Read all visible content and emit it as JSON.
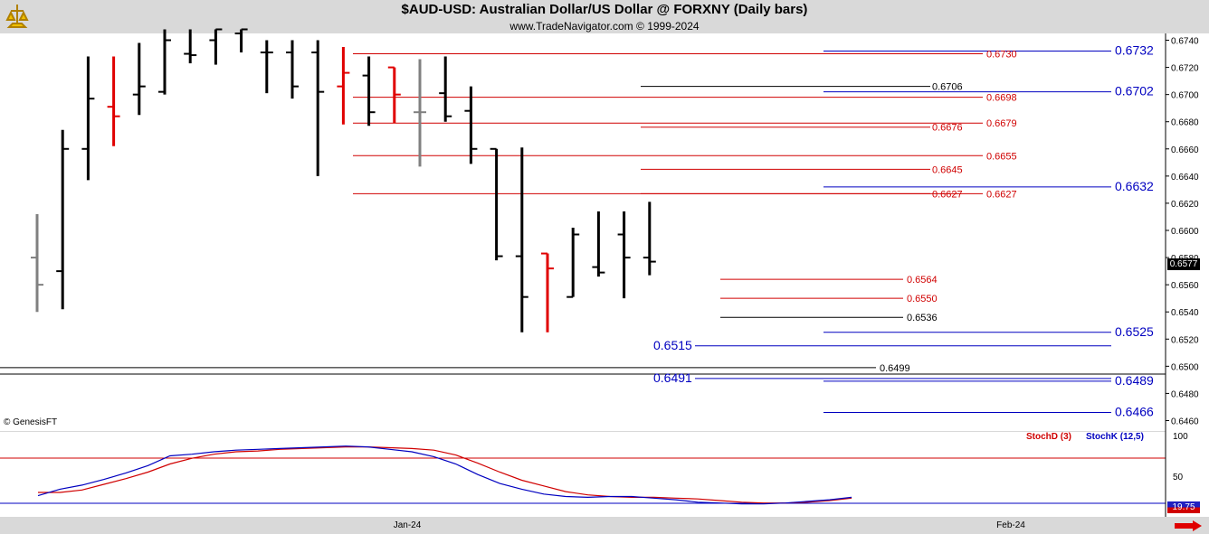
{
  "header": {
    "title": "$AUD-USD:  Australian Dollar/US Dollar @ FORXNY  (Daily bars)",
    "subtitle": "www.TradeNavigator.com © 1999-2024"
  },
  "watermark": "© GenesisFT",
  "last_price_label": "0.6577",
  "stoch_value_label": "19.75",
  "colors": {
    "up_bar": "#000000",
    "down_bar": "#e00000",
    "neutral_bar": "#808080",
    "level_red": "#d00000",
    "level_blue": "#0000c0",
    "level_black": "#000000",
    "stoch_d": "#d00000",
    "stoch_k": "#0000c0"
  },
  "chart_data": [
    {
      "type": "bar",
      "subtype": "ohlc",
      "ylim": [
        0.6457,
        0.6743
      ],
      "y_ticks": [
        "0.6740",
        "0.6720",
        "0.6700",
        "0.6680",
        "0.6660",
        "0.6640",
        "0.6620",
        "0.6600",
        "0.6580",
        "0.6560",
        "0.6540",
        "0.6520",
        "0.6500",
        "0.6480",
        "0.6460"
      ],
      "x_ticks": [
        "Jan-24",
        "Feb-24"
      ],
      "bars": [
        {
          "o": 0.658,
          "h": 0.6612,
          "l": 0.654,
          "c": 0.656,
          "color": "gray"
        },
        {
          "o": 0.657,
          "h": 0.6674,
          "l": 0.6542,
          "c": 0.666,
          "color": "black"
        },
        {
          "o": 0.666,
          "h": 0.6728,
          "l": 0.6637,
          "c": 0.6697,
          "color": "black"
        },
        {
          "o": 0.6691,
          "h": 0.6728,
          "l": 0.6662,
          "c": 0.6684,
          "color": "red"
        },
        {
          "o": 0.67,
          "h": 0.6738,
          "l": 0.6685,
          "c": 0.6706,
          "color": "black"
        },
        {
          "o": 0.6702,
          "h": 0.6748,
          "l": 0.67,
          "c": 0.674,
          "color": "black"
        },
        {
          "o": 0.673,
          "h": 0.6748,
          "l": 0.6723,
          "c": 0.6729,
          "color": "black"
        },
        {
          "o": 0.674,
          "h": 0.6748,
          "l": 0.6722,
          "c": 0.6748,
          "color": "black"
        },
        {
          "o": 0.6745,
          "h": 0.6748,
          "l": 0.6731,
          "c": 0.6748,
          "color": "black"
        },
        {
          "o": 0.6731,
          "h": 0.674,
          "l": 0.6701,
          "c": 0.6731,
          "color": "black"
        },
        {
          "o": 0.6731,
          "h": 0.674,
          "l": 0.6697,
          "c": 0.6706,
          "color": "black"
        },
        {
          "o": 0.6731,
          "h": 0.674,
          "l": 0.664,
          "c": 0.6702,
          "color": "black"
        },
        {
          "o": 0.6706,
          "h": 0.6735,
          "l": 0.6678,
          "c": 0.6716,
          "color": "red"
        },
        {
          "o": 0.6714,
          "h": 0.6728,
          "l": 0.6677,
          "c": 0.6687,
          "color": "black"
        },
        {
          "o": 0.672,
          "h": 0.672,
          "l": 0.6679,
          "c": 0.67,
          "color": "red"
        },
        {
          "o": 0.6687,
          "h": 0.6726,
          "l": 0.6647,
          "c": 0.6687,
          "color": "gray"
        },
        {
          "o": 0.6701,
          "h": 0.6728,
          "l": 0.668,
          "c": 0.6684,
          "color": "black"
        },
        {
          "o": 0.6688,
          "h": 0.6706,
          "l": 0.6649,
          "c": 0.666,
          "color": "black"
        },
        {
          "o": 0.666,
          "h": 0.666,
          "l": 0.6578,
          "c": 0.6581,
          "color": "black"
        },
        {
          "o": 0.6581,
          "h": 0.6661,
          "l": 0.6525,
          "c": 0.6551,
          "color": "black"
        },
        {
          "o": 0.6583,
          "h": 0.6583,
          "l": 0.6525,
          "c": 0.6572,
          "color": "red"
        },
        {
          "o": 0.6551,
          "h": 0.6602,
          "l": 0.6551,
          "c": 0.6597,
          "color": "black"
        },
        {
          "o": 0.6573,
          "h": 0.6614,
          "l": 0.6566,
          "c": 0.6569,
          "color": "black"
        },
        {
          "o": 0.6597,
          "h": 0.6614,
          "l": 0.655,
          "c": 0.658,
          "color": "black"
        },
        {
          "o": 0.658,
          "h": 0.6621,
          "l": 0.6567,
          "c": 0.6577,
          "color": "black"
        }
      ],
      "levels": [
        {
          "value": "0.6732",
          "color": "blue",
          "label_side": "right"
        },
        {
          "value": "0.6730",
          "color": "red",
          "label_side": "mid"
        },
        {
          "value": "0.6706",
          "color": "black",
          "label_side": "mid"
        },
        {
          "value": "0.6702",
          "color": "blue",
          "label_side": "right"
        },
        {
          "value": "0.6698",
          "color": "red",
          "label_side": "mid"
        },
        {
          "value": "0.6679",
          "color": "red",
          "label_side": "mid"
        },
        {
          "value": "0.6676",
          "color": "red",
          "label_side": "mid"
        },
        {
          "value": "0.6655",
          "color": "red",
          "label_side": "mid"
        },
        {
          "value": "0.6645",
          "color": "red",
          "label_side": "mid"
        },
        {
          "value": "0.6632",
          "color": "blue",
          "label_side": "right"
        },
        {
          "value": "0.6627",
          "color": "red",
          "label_side": "mid"
        },
        {
          "value": "0.6627",
          "color": "red",
          "label_side": "mid2"
        },
        {
          "value": "0.6564",
          "color": "red",
          "label_side": "mid"
        },
        {
          "value": "0.6550",
          "color": "red",
          "label_side": "mid"
        },
        {
          "value": "0.6536",
          "color": "black",
          "label_side": "mid"
        },
        {
          "value": "0.6525",
          "color": "blue",
          "label_side": "right"
        },
        {
          "value": "0.6515",
          "color": "blue",
          "label_side": "left"
        },
        {
          "value": "0.6499",
          "color": "black",
          "label_side": "mid"
        },
        {
          "value": "0.6491",
          "color": "blue",
          "label_side": "left"
        },
        {
          "value": "0.6489",
          "color": "blue",
          "label_side": "right"
        },
        {
          "value": "0.6466",
          "color": "blue",
          "label_side": "right"
        }
      ]
    },
    {
      "type": "line",
      "ylim": [
        0,
        100
      ],
      "y_ticks": [
        "100",
        "50"
      ],
      "series": [
        {
          "name": "StochD (3)",
          "values": [
            30,
            30,
            33,
            40,
            47,
            55,
            65,
            72,
            77,
            80,
            81,
            83,
            84,
            85,
            86,
            86,
            85,
            84,
            82,
            76,
            66,
            55,
            45,
            38,
            31,
            27,
            25,
            24,
            24,
            23,
            22,
            20,
            18,
            17,
            17,
            18,
            20,
            23
          ]
        },
        {
          "name": "StochK (12,5)",
          "values": [
            26,
            34,
            39,
            46,
            54,
            63,
            75,
            77,
            80,
            82,
            83,
            84,
            85,
            86,
            87,
            86,
            83,
            80,
            74,
            65,
            52,
            41,
            34,
            28,
            25,
            24,
            25,
            25,
            23,
            21,
            18,
            17,
            16,
            16,
            17,
            19,
            21,
            24
          ]
        }
      ]
    }
  ]
}
